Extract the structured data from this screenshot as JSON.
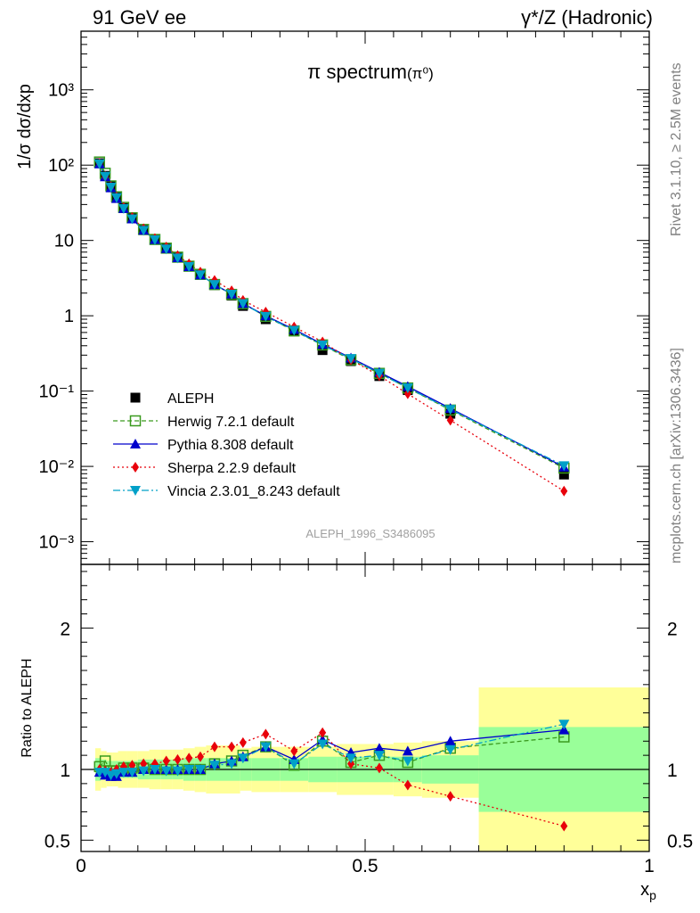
{
  "header": {
    "left": "91 GeV ee",
    "right": "γ*/Z (Hadronic)"
  },
  "side_labels": {
    "rivet": "Rivet 3.1.10, ≥ 2.5M events",
    "mcplots": "mcplots.cern.ch [arXiv:1306.3436]"
  },
  "chart_data": [
    {
      "type": "scatter",
      "title": "π spectrum",
      "title_suffix": "(π⁰)",
      "ylabel": "1/σ dσ/dxp",
      "yscale": "log",
      "ylim": [
        0.0005,
        6000
      ],
      "xlim": [
        0,
        1
      ],
      "y_ticks": [
        "10⁻³",
        "10⁻²",
        "10⁻¹",
        "1",
        "10",
        "10²",
        "10³"
      ],
      "annotation": "ALEPH_1996_S3486095",
      "legend_position": "bottom-left",
      "x": [
        0.0325,
        0.0425,
        0.0525,
        0.0625,
        0.075,
        0.09,
        0.11,
        0.13,
        0.15,
        0.17,
        0.19,
        0.21,
        0.235,
        0.265,
        0.285,
        0.325,
        0.375,
        0.425,
        0.475,
        0.525,
        0.575,
        0.65,
        0.85
      ],
      "series": [
        {
          "name": "ALEPH",
          "color": "#000000",
          "marker": "square",
          "values": [
            106,
            72,
            53,
            38,
            27,
            19.6,
            13.7,
            10.2,
            7.8,
            5.9,
            4.5,
            3.5,
            2.55,
            1.85,
            1.35,
            0.9,
            0.62,
            0.35,
            0.25,
            0.158,
            0.103,
            0.05,
            0.0078
          ]
        },
        {
          "name": "Herwig 7.2.1 default",
          "color": "#3a9a1f",
          "marker": "open-square",
          "dash": "5,3",
          "values": [
            110,
            78,
            53,
            38,
            27.5,
            20,
            14,
            10.3,
            7.9,
            6.0,
            4.55,
            3.55,
            2.6,
            1.92,
            1.45,
            0.98,
            0.63,
            0.41,
            0.26,
            0.172,
            0.11,
            0.056,
            0.0095
          ]
        },
        {
          "name": "Pythia 8.308 default",
          "color": "#0000cc",
          "marker": "triangle-up",
          "dash": "",
          "values": [
            104,
            70,
            50,
            36,
            26.5,
            19.3,
            13.7,
            10.3,
            7.8,
            5.9,
            4.5,
            3.5,
            2.6,
            1.95,
            1.46,
            1.0,
            0.66,
            0.42,
            0.275,
            0.178,
            0.115,
            0.059,
            0.0098
          ]
        },
        {
          "name": "Sherpa 2.2.9 default",
          "color": "#e8000b",
          "marker": "diamond",
          "dash": "2,3",
          "values": [
            106,
            71,
            52,
            38,
            27.5,
            20.3,
            14.3,
            10.6,
            8.2,
            6.3,
            4.9,
            3.8,
            2.95,
            2.15,
            1.6,
            1.12,
            0.71,
            0.45,
            0.26,
            0.16,
            0.092,
            0.041,
            0.0047
          ]
        },
        {
          "name": "Vincia 2.3.01_8.243 default",
          "color": "#00a0c8",
          "marker": "triangle-down",
          "dash": "8,3,2,3",
          "values": [
            104,
            71,
            51,
            37,
            26.5,
            19.3,
            13.6,
            10.2,
            7.7,
            5.85,
            4.5,
            3.5,
            2.6,
            1.93,
            1.45,
            0.98,
            0.64,
            0.41,
            0.27,
            0.172,
            0.11,
            0.057,
            0.0102
          ]
        }
      ]
    },
    {
      "type": "scatter",
      "ylabel": "Ratio to ALEPH",
      "xlabel": "xp",
      "ylim": [
        0.42,
        2.45
      ],
      "xlim": [
        0,
        1
      ],
      "x_ticks": [
        "0",
        "0.5",
        "1"
      ],
      "y_ticks": [
        "0.5",
        "1",
        "2"
      ],
      "reference_line": 1,
      "bands": {
        "edges": [
          0.025,
          0.035,
          0.045,
          0.055,
          0.065,
          0.08,
          0.1,
          0.12,
          0.14,
          0.16,
          0.18,
          0.2,
          0.22,
          0.25,
          0.28,
          0.3,
          0.35,
          0.4,
          0.45,
          0.5,
          0.55,
          0.6,
          0.7,
          1.0
        ],
        "stat_sys": [
          0.15,
          0.13,
          0.12,
          0.12,
          0.13,
          0.13,
          0.13,
          0.14,
          0.14,
          0.14,
          0.15,
          0.16,
          0.17,
          0.17,
          0.15,
          0.16,
          0.16,
          0.16,
          0.18,
          0.18,
          0.19,
          0.2,
          0.58
        ],
        "stat": [
          0.08,
          0.07,
          0.06,
          0.06,
          0.06,
          0.06,
          0.07,
          0.07,
          0.07,
          0.07,
          0.08,
          0.08,
          0.08,
          0.08,
          0.08,
          0.08,
          0.08,
          0.09,
          0.09,
          0.09,
          0.09,
          0.1,
          0.3
        ]
      },
      "x": [
        0.0325,
        0.0425,
        0.0525,
        0.0625,
        0.075,
        0.09,
        0.11,
        0.13,
        0.15,
        0.17,
        0.19,
        0.21,
        0.235,
        0.265,
        0.285,
        0.325,
        0.375,
        0.425,
        0.475,
        0.525,
        0.575,
        0.65,
        0.85
      ],
      "series": [
        {
          "name": "Herwig 7.2.1 default",
          "color": "#3a9a1f",
          "marker": "open-square",
          "dash": "5,3",
          "values": [
            1.02,
            1.06,
            0.99,
            0.99,
            1.01,
            1.01,
            1.01,
            1.0,
            1.0,
            1.0,
            1.0,
            1.0,
            1.04,
            1.06,
            1.1,
            1.16,
            1.03,
            1.2,
            1.05,
            1.1,
            1.05,
            1.15,
            1.23
          ]
        },
        {
          "name": "Pythia 8.308 default",
          "color": "#0000cc",
          "marker": "triangle-up",
          "dash": "",
          "values": [
            0.98,
            0.96,
            0.95,
            0.95,
            0.98,
            0.98,
            1.0,
            1.0,
            1.0,
            1.0,
            1.0,
            1.0,
            1.04,
            1.06,
            1.09,
            1.16,
            1.07,
            1.21,
            1.12,
            1.15,
            1.13,
            1.2,
            1.28
          ]
        },
        {
          "name": "Sherpa 2.2.9 default",
          "color": "#e8000b",
          "marker": "diamond",
          "dash": "2,3",
          "values": [
            1.0,
            0.99,
            0.98,
            1.0,
            1.02,
            1.03,
            1.04,
            1.04,
            1.06,
            1.07,
            1.08,
            1.09,
            1.16,
            1.16,
            1.19,
            1.25,
            1.13,
            1.26,
            1.04,
            1.01,
            0.89,
            0.81,
            0.6
          ]
        },
        {
          "name": "Vincia 2.3.01_8.243 default",
          "color": "#00a0c8",
          "marker": "triangle-down",
          "dash": "8,3,2,3",
          "values": [
            0.98,
            0.98,
            0.96,
            0.97,
            0.98,
            0.98,
            0.99,
            1.0,
            0.99,
            0.99,
            1.0,
            1.0,
            1.03,
            1.04,
            1.08,
            1.16,
            1.04,
            1.18,
            1.08,
            1.1,
            1.06,
            1.14,
            1.32
          ]
        }
      ]
    }
  ]
}
